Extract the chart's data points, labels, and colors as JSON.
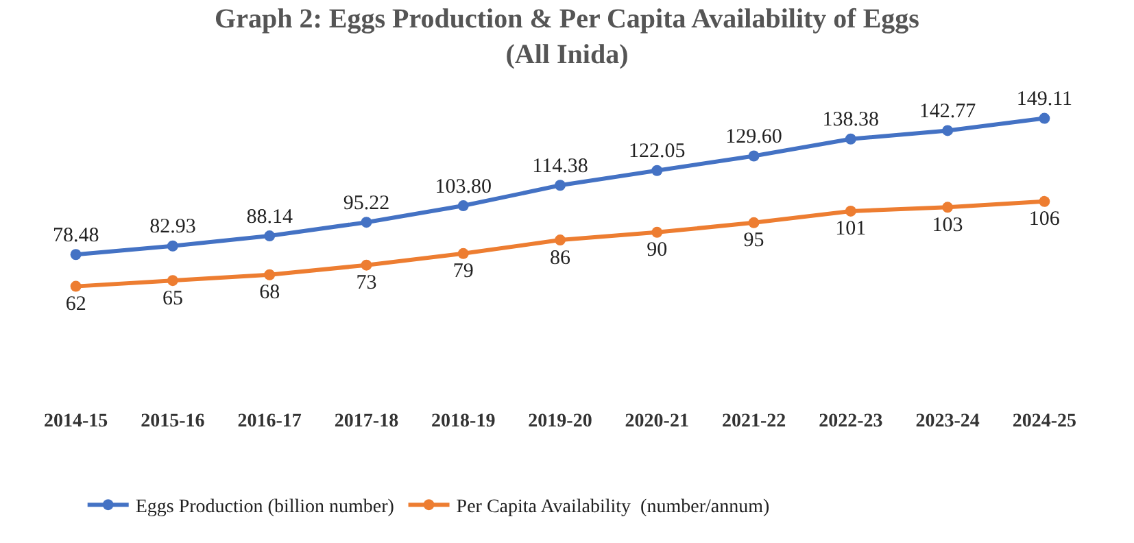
{
  "chart_data": {
    "type": "line",
    "title": "Graph 2: Eggs Production & Per Capita Availability of Eggs\n(All Inida)",
    "categories": [
      "2014-15",
      "2015-16",
      "2016-17",
      "2017-18",
      "2018-19",
      "2019-20",
      "2020-21",
      "2021-22",
      "2022-23",
      "2023-24",
      "2024-25"
    ],
    "series": [
      {
        "name": "Eggs Production (billion number)",
        "color": "#4472c4",
        "values": [
          78.48,
          82.93,
          88.14,
          95.22,
          103.8,
          114.38,
          122.05,
          129.6,
          138.38,
          142.77,
          149.11
        ],
        "value_labels": [
          "78.48",
          "82.93",
          "88.14",
          "95.22",
          "103.80",
          "114.38",
          "122.05",
          "129.60",
          "138.38",
          "142.77",
          "149.11"
        ]
      },
      {
        "name": "Per Capita Availability  (number/annum)",
        "color": "#ed7d31",
        "values": [
          62,
          65,
          68,
          73,
          79,
          86,
          90,
          95,
          101,
          103,
          106
        ],
        "value_labels": [
          "62",
          "65",
          "68",
          "73",
          "79",
          "86",
          "90",
          "95",
          "101",
          "103",
          "106"
        ]
      }
    ],
    "marker": "circle",
    "line_style": "solid",
    "legend": "bottom left",
    "tick_labels": "x"
  }
}
